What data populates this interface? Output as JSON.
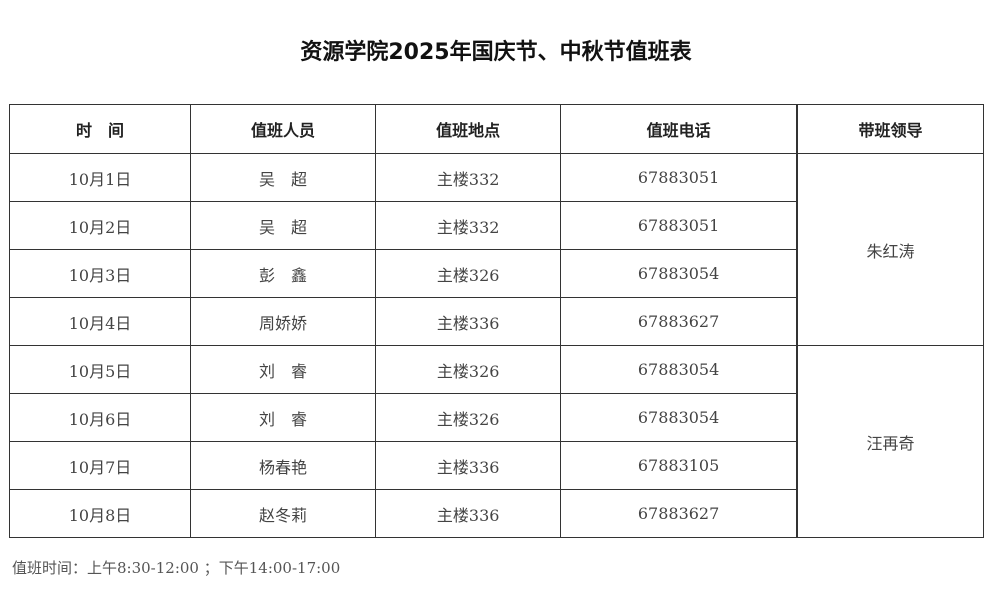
{
  "title": "资源学院2025年国庆节、中秋节值班表",
  "headers": [
    "时　间",
    "值班人员",
    "值班地点",
    "值班电话",
    "带班领导"
  ],
  "rows": [
    [
      "10月1日",
      "吴　超",
      "主楼332",
      "67883051"
    ],
    [
      "10月2日",
      "吴　超",
      "主楼332",
      "67883051"
    ],
    [
      "10月3日",
      "彭　鑫",
      "主楼326",
      "67883054"
    ],
    [
      "10月4日",
      "周娇娇",
      "主楼336",
      "67883627"
    ],
    [
      "10月5日",
      "刘　睿",
      "主楼326",
      "67883054"
    ],
    [
      "10月6日",
      "刘　睿",
      "主楼326",
      "67883054"
    ],
    [
      "10月7日",
      "杨春艳",
      "主楼336",
      "67883105"
    ],
    [
      "10月8日",
      "赵冬莉",
      "主楼336",
      "67883627"
    ]
  ],
  "leaders": [
    "朱红涛",
    "汪再奇"
  ],
  "footer": "值班时间：上午8:30-12:00 ；下午14:00-17:00"
}
